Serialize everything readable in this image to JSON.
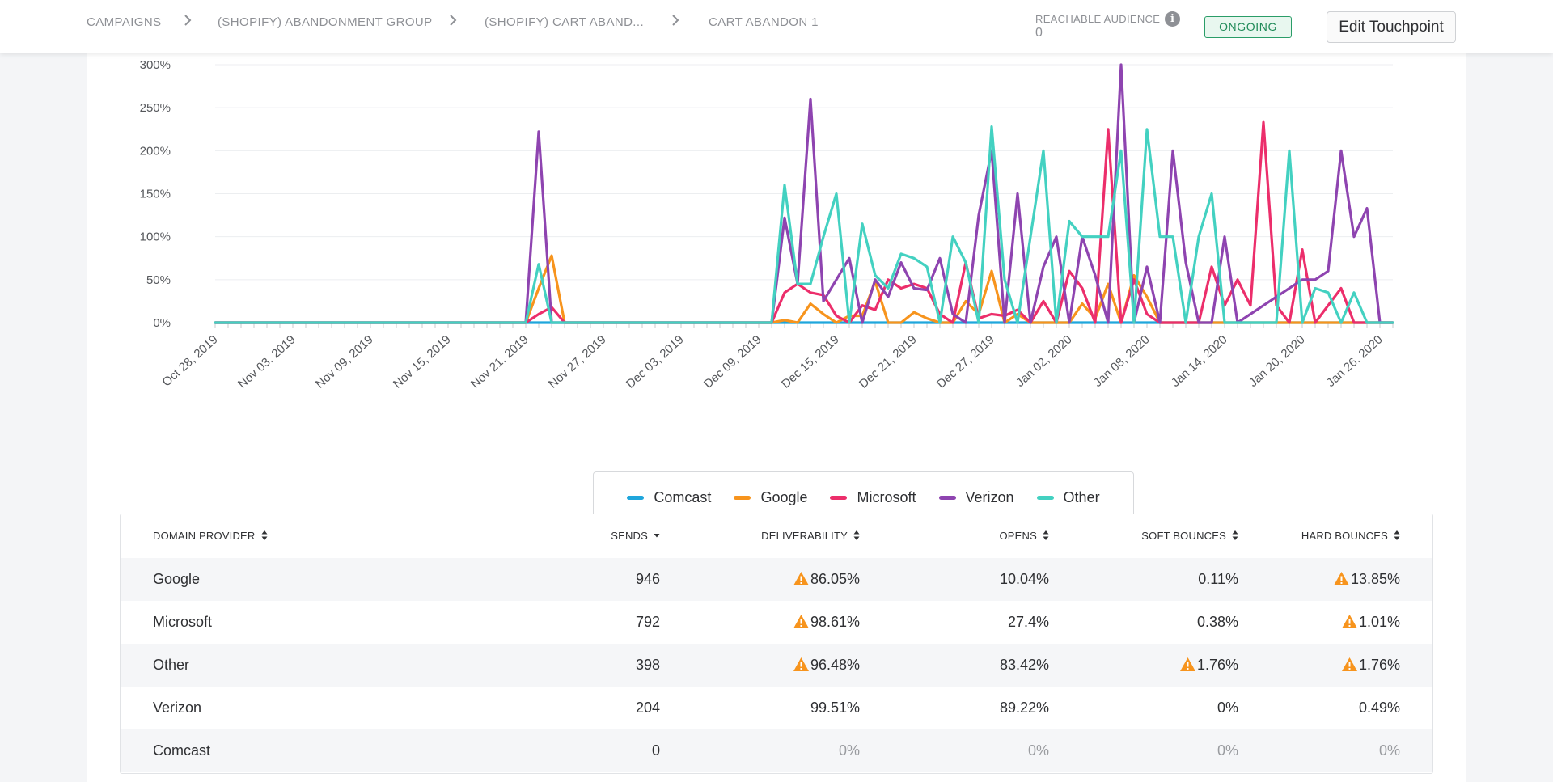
{
  "header": {
    "breadcrumbs": [
      "CAMPAIGNS",
      "(SHOPIFY) ABANDONMENT GROUP",
      "(SHOPIFY) CART ABAND...",
      "CART ABANDON 1"
    ],
    "reach_label": "REACHABLE AUDIENCE",
    "reach_value": "0",
    "status": "ONGOING",
    "edit_label": "Edit Touchpoint"
  },
  "colors": {
    "Comcast": "#1fa6dc",
    "Google": "#f7941d",
    "Microsoft": "#ec2e6b",
    "Verizon": "#8e44b0",
    "Other": "#43d1c1"
  },
  "chart_data": {
    "type": "line",
    "title": "",
    "xlabel": "",
    "ylabel": "",
    "ylim": [
      0,
      300
    ],
    "y_ticks": [
      "0%",
      "50%",
      "100%",
      "150%",
      "200%",
      "250%",
      "300%"
    ],
    "x_start": "Oct 28, 2019",
    "x_tick_labels": [
      "Oct 28, 2019",
      "Nov 03, 2019",
      "Nov 09, 2019",
      "Nov 15, 2019",
      "Nov 21, 2019",
      "Nov 27, 2019",
      "Dec 03, 2019",
      "Dec 09, 2019",
      "Dec 15, 2019",
      "Dec 21, 2019",
      "Dec 27, 2019",
      "Jan 02, 2020",
      "Jan 08, 2020",
      "Jan 14, 2020",
      "Jan 20, 2020",
      "Jan 26, 2020"
    ],
    "legend": [
      "Comcast",
      "Google",
      "Microsoft",
      "Verizon",
      "Other"
    ],
    "legend_position": "bottom",
    "series": [
      {
        "name": "Comcast",
        "points": [
          [
            0,
            0
          ],
          [
            91,
            0
          ]
        ]
      },
      {
        "name": "Google",
        "points": [
          [
            0,
            0
          ],
          [
            24,
            0
          ],
          [
            25,
            40
          ],
          [
            26,
            78
          ],
          [
            27,
            0
          ],
          [
            43,
            0
          ],
          [
            44,
            3
          ],
          [
            45,
            0
          ],
          [
            46,
            22
          ],
          [
            47,
            10
          ],
          [
            48,
            0
          ],
          [
            49,
            8
          ],
          [
            50,
            8
          ],
          [
            51,
            48
          ],
          [
            52,
            0
          ],
          [
            53,
            0
          ],
          [
            54,
            12
          ],
          [
            55,
            5
          ],
          [
            56,
            0
          ],
          [
            57,
            0
          ],
          [
            58,
            25
          ],
          [
            59,
            10
          ],
          [
            60,
            60
          ],
          [
            61,
            0
          ],
          [
            62,
            10
          ],
          [
            63,
            0
          ],
          [
            66,
            0
          ],
          [
            67,
            22
          ],
          [
            68,
            5
          ],
          [
            69,
            45
          ],
          [
            70,
            0
          ],
          [
            71,
            55
          ],
          [
            72,
            30
          ],
          [
            73,
            0
          ],
          [
            91,
            0
          ]
        ]
      },
      {
        "name": "Microsoft",
        "points": [
          [
            0,
            0
          ],
          [
            24,
            0
          ],
          [
            25,
            10
          ],
          [
            26,
            18
          ],
          [
            27,
            0
          ],
          [
            43,
            0
          ],
          [
            44,
            35
          ],
          [
            45,
            45
          ],
          [
            46,
            35
          ],
          [
            47,
            32
          ],
          [
            48,
            8
          ],
          [
            49,
            0
          ],
          [
            50,
            20
          ],
          [
            51,
            15
          ],
          [
            52,
            50
          ],
          [
            53,
            40
          ],
          [
            54,
            45
          ],
          [
            55,
            40
          ],
          [
            56,
            10
          ],
          [
            57,
            0
          ],
          [
            58,
            70
          ],
          [
            59,
            5
          ],
          [
            60,
            10
          ],
          [
            61,
            8
          ],
          [
            62,
            15
          ],
          [
            63,
            0
          ],
          [
            64,
            25
          ],
          [
            65,
            0
          ],
          [
            66,
            60
          ],
          [
            67,
            40
          ],
          [
            68,
            0
          ],
          [
            69,
            225
          ],
          [
            70,
            0
          ],
          [
            71,
            50
          ],
          [
            72,
            10
          ],
          [
            73,
            0
          ],
          [
            76,
            0
          ],
          [
            77,
            65
          ],
          [
            78,
            20
          ],
          [
            79,
            50
          ],
          [
            80,
            20
          ],
          [
            81,
            233
          ],
          [
            82,
            20
          ],
          [
            83,
            0
          ],
          [
            84,
            85
          ],
          [
            85,
            0
          ],
          [
            86,
            20
          ],
          [
            87,
            40
          ],
          [
            88,
            0
          ],
          [
            91,
            0
          ]
        ]
      },
      {
        "name": "Verizon",
        "points": [
          [
            0,
            0
          ],
          [
            24,
            0
          ],
          [
            25,
            222
          ],
          [
            26,
            0
          ],
          [
            27,
            0
          ],
          [
            43,
            0
          ],
          [
            44,
            122
          ],
          [
            45,
            45
          ],
          [
            46,
            260
          ],
          [
            47,
            25
          ],
          [
            48,
            50
          ],
          [
            49,
            75
          ],
          [
            50,
            0
          ],
          [
            51,
            50
          ],
          [
            52,
            30
          ],
          [
            53,
            70
          ],
          [
            54,
            40
          ],
          [
            55,
            38
          ],
          [
            56,
            75
          ],
          [
            57,
            10
          ],
          [
            58,
            0
          ],
          [
            59,
            125
          ],
          [
            60,
            200
          ],
          [
            61,
            0
          ],
          [
            62,
            150
          ],
          [
            63,
            0
          ],
          [
            64,
            65
          ],
          [
            65,
            100
          ],
          [
            66,
            0
          ],
          [
            67,
            100
          ],
          [
            68,
            55
          ],
          [
            69,
            0
          ],
          [
            70,
            300
          ],
          [
            71,
            0
          ],
          [
            72,
            65
          ],
          [
            73,
            0
          ],
          [
            74,
            200
          ],
          [
            75,
            70
          ],
          [
            76,
            0
          ],
          [
            77,
            0
          ],
          [
            78,
            100
          ],
          [
            79,
            0
          ],
          [
            84,
            50
          ],
          [
            85,
            50
          ],
          [
            86,
            60
          ],
          [
            87,
            200
          ],
          [
            88,
            100
          ],
          [
            89,
            133
          ],
          [
            90,
            0
          ],
          [
            91,
            0
          ]
        ]
      },
      {
        "name": "Other",
        "points": [
          [
            0,
            0
          ],
          [
            24,
            0
          ],
          [
            25,
            68
          ],
          [
            26,
            0
          ],
          [
            27,
            0
          ],
          [
            43,
            0
          ],
          [
            44,
            160
          ],
          [
            45,
            45
          ],
          [
            46,
            45
          ],
          [
            47,
            100
          ],
          [
            48,
            150
          ],
          [
            49,
            0
          ],
          [
            50,
            115
          ],
          [
            51,
            55
          ],
          [
            52,
            40
          ],
          [
            53,
            80
          ],
          [
            54,
            75
          ],
          [
            55,
            65
          ],
          [
            56,
            0
          ],
          [
            57,
            100
          ],
          [
            58,
            70
          ],
          [
            59,
            0
          ],
          [
            60,
            228
          ],
          [
            61,
            50
          ],
          [
            62,
            0
          ],
          [
            63,
            100
          ],
          [
            64,
            200
          ],
          [
            65,
            0
          ],
          [
            66,
            118
          ],
          [
            67,
            100
          ],
          [
            68,
            100
          ],
          [
            69,
            100
          ],
          [
            70,
            200
          ],
          [
            71,
            0
          ],
          [
            72,
            225
          ],
          [
            73,
            100
          ],
          [
            74,
            100
          ],
          [
            75,
            0
          ],
          [
            76,
            100
          ],
          [
            77,
            150
          ],
          [
            78,
            0
          ],
          [
            79,
            0
          ],
          [
            80,
            0
          ],
          [
            81,
            0
          ],
          [
            82,
            0
          ],
          [
            83,
            200
          ],
          [
            84,
            0
          ],
          [
            85,
            40
          ],
          [
            86,
            35
          ],
          [
            87,
            0
          ],
          [
            88,
            35
          ],
          [
            89,
            0
          ],
          [
            91,
            0
          ]
        ]
      }
    ]
  },
  "table": {
    "columns": [
      "DOMAIN PROVIDER",
      "SENDS",
      "DELIVERABILITY",
      "OPENS",
      "SOFT BOUNCES",
      "HARD BOUNCES"
    ],
    "rows": [
      {
        "provider": "Google",
        "sends": "946",
        "deliverability": "86.05%",
        "opens": "10.04%",
        "soft": "0.11%",
        "hard": "13.85%"
      },
      {
        "provider": "Microsoft",
        "sends": "792",
        "deliverability": "98.61%",
        "opens": "27.4%",
        "soft": "0.38%",
        "hard": "1.01%"
      },
      {
        "provider": "Other",
        "sends": "398",
        "deliverability": "96.48%",
        "opens": "83.42%",
        "soft": "1.76%",
        "hard": "1.76%"
      },
      {
        "provider": "Verizon",
        "sends": "204",
        "deliverability": "99.51%",
        "opens": "89.22%",
        "soft": "0%",
        "hard": "0.49%"
      },
      {
        "provider": "Comcast",
        "sends": "0",
        "deliverability": "0%",
        "opens": "0%",
        "soft": "0%",
        "hard": "0%"
      }
    ]
  }
}
